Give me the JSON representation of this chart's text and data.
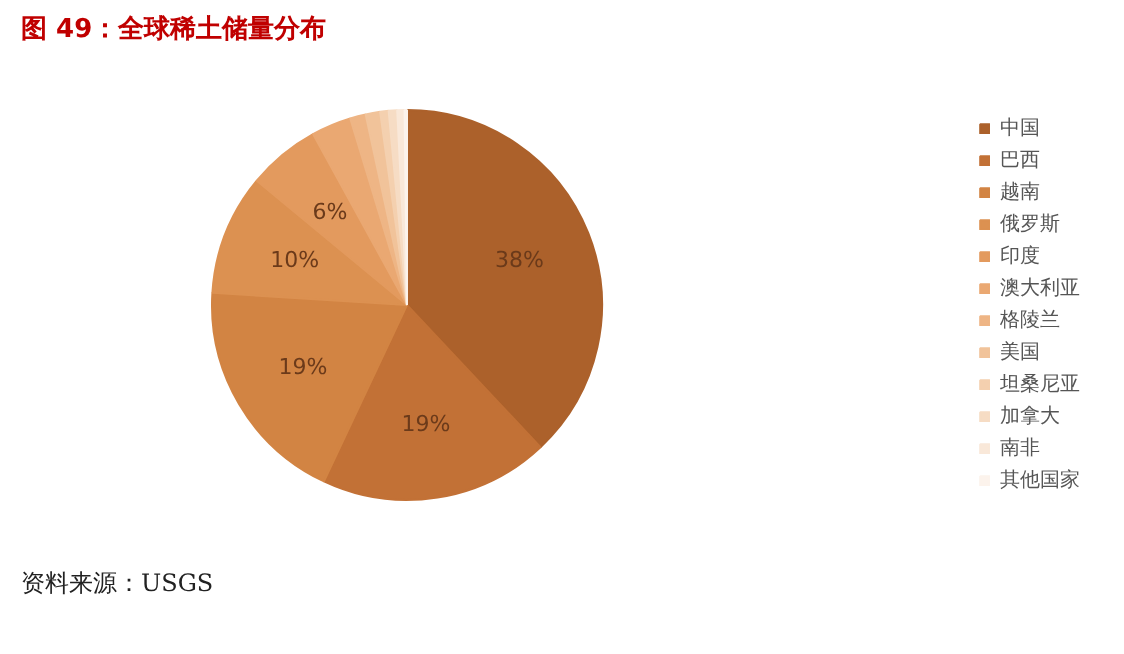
{
  "chart_data": {
    "type": "pie",
    "title": "图 49：全球稀土储量分布",
    "categories": [
      "中国",
      "巴西",
      "越南",
      "俄罗斯",
      "印度",
      "澳大利亚",
      "格陵兰",
      "美国",
      "坦桑尼亚",
      "加拿大",
      "南非",
      "其他国家"
    ],
    "values": [
      38,
      19,
      19,
      10,
      6,
      3.3,
      1.3,
      1.2,
      0.7,
      0.7,
      0.6,
      0.2
    ],
    "colors": [
      "#ac612b",
      "#c27136",
      "#d28443",
      "#dc9151",
      "#e39a5e",
      "#eaa872",
      "#eeb585",
      "#f1c39a",
      "#f4d0af",
      "#f6dcc4",
      "#f9e8d9",
      "#fcf3ec"
    ],
    "value_labels": [
      "38%",
      "19%",
      "19%",
      "10%",
      "6%",
      null,
      null,
      null,
      null,
      null,
      null,
      null
    ],
    "legend": "right",
    "annotations": [
      "资料来源：USGS"
    ]
  }
}
